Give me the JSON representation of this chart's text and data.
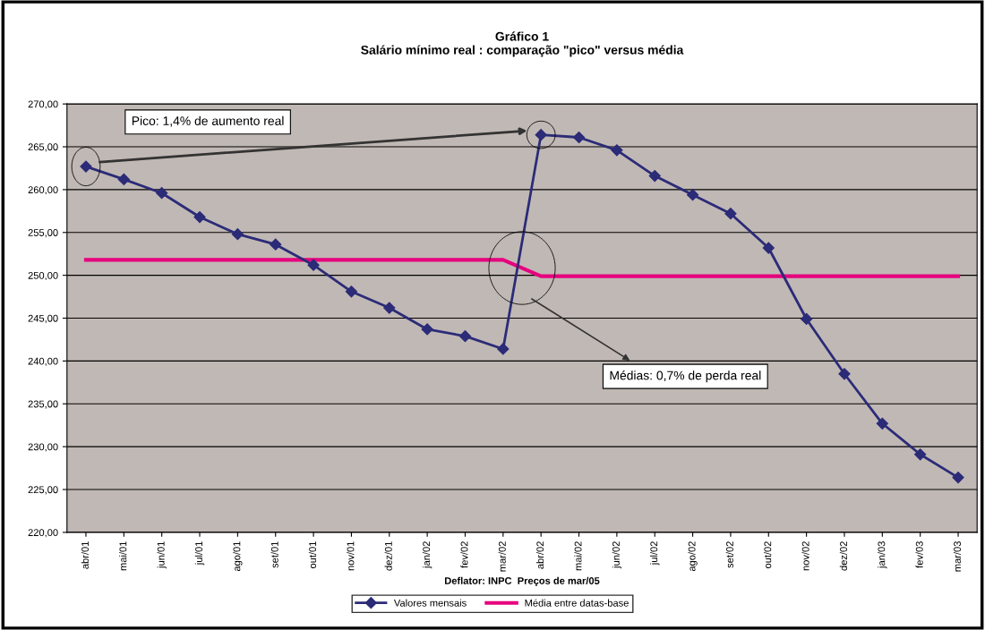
{
  "chart_data": {
    "type": "line",
    "title": "Gráfico 1\nSalário mínimo real : comparação \"pico\" versus média",
    "xlabel": "Deflator: INPC  Preços de mar/05",
    "categories": [
      "abr/01",
      "mai/01",
      "jun/01",
      "jul/01",
      "ago/01",
      "set/01",
      "out/01",
      "nov/01",
      "dez/01",
      "jan/02",
      "fev/02",
      "mar/02",
      "abr/02",
      "mai/02",
      "jun/02",
      "jul/02",
      "ago/02",
      "set/02",
      "out/02",
      "nov/02",
      "dez/02",
      "jan/03",
      "fev/03",
      "mar/03"
    ],
    "series": [
      {
        "name": "Valores mensais",
        "color": "#2b2b78",
        "marker": "diamond",
        "values": [
          262.7,
          261.2,
          259.6,
          256.8,
          254.8,
          253.6,
          251.2,
          248.1,
          246.2,
          243.7,
          242.9,
          241.4,
          266.4,
          266.1,
          264.6,
          261.6,
          259.4,
          257.2,
          253.2,
          244.9,
          238.5,
          232.7,
          229.1,
          226.4
        ]
      },
      {
        "name": "Média entre datas-base",
        "color": "#e6007e",
        "marker": "none",
        "values": [
          251.8,
          251.8,
          251.8,
          251.8,
          251.8,
          251.8,
          251.8,
          251.8,
          251.8,
          251.8,
          251.8,
          251.8,
          249.9,
          249.9,
          249.9,
          249.9,
          249.9,
          249.9,
          249.9,
          249.9,
          249.9,
          249.9,
          249.9,
          249.9
        ]
      }
    ],
    "ylim": [
      220,
      270
    ],
    "yticks": [
      {
        "value": 220,
        "label": "220,00"
      },
      {
        "value": 225,
        "label": "225,00"
      },
      {
        "value": 230,
        "label": "230,00"
      },
      {
        "value": 235,
        "label": "235,00"
      },
      {
        "value": 240,
        "label": "240,00"
      },
      {
        "value": 245,
        "label": "245,00"
      },
      {
        "value": 250,
        "label": "250,00"
      },
      {
        "value": 255,
        "label": "255,00"
      },
      {
        "value": 260,
        "label": "260,00"
      },
      {
        "value": 265,
        "label": "265,00"
      },
      {
        "value": 270,
        "label": "270,00"
      }
    ],
    "grid": "y",
    "legend": "bottom",
    "annotations": [
      "Pico: 1,4% de aumento real",
      "Médias: 0,7% de perda real"
    ]
  }
}
